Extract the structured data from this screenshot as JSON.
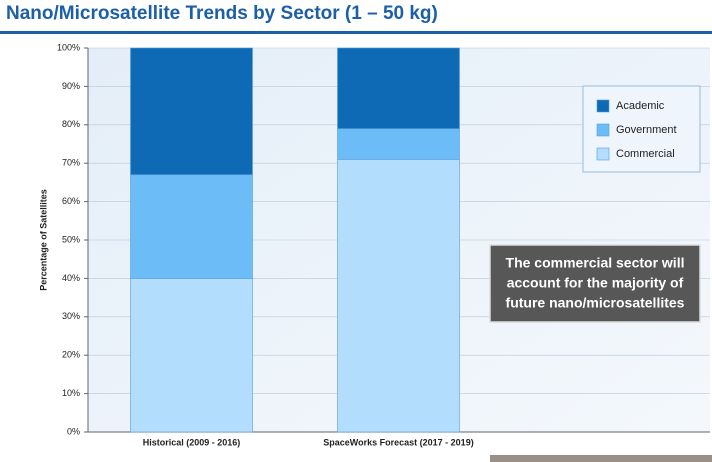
{
  "chart_data": {
    "type": "stacked-bar",
    "title": "Nano/Microsatellite Trends by Sector (1 – 50 kg)",
    "y_label": "Percentage of Satellites",
    "categories": [
      "Historical (2009 - 2016)",
      "SpaceWorks Forecast (2017 - 2019)"
    ],
    "series": [
      {
        "name": "Academic",
        "color": "#0e6ab5",
        "values": [
          33,
          21
        ]
      },
      {
        "name": "Government",
        "color": "#6cbcf8",
        "values": [
          27,
          8
        ]
      },
      {
        "name": "Commercial",
        "color": "#b2ddfc",
        "values": [
          40,
          71
        ]
      }
    ],
    "ylim": [
      0,
      100
    ],
    "yticks": [
      {
        "value": 0,
        "label": "0%"
      },
      {
        "value": 10,
        "label": "10%"
      },
      {
        "value": 20,
        "label": "20%"
      },
      {
        "value": 30,
        "label": "30%"
      },
      {
        "value": 40,
        "label": "40%"
      },
      {
        "value": 50,
        "label": "50%"
      },
      {
        "value": 60,
        "label": "60%"
      },
      {
        "value": 70,
        "label": "70%"
      },
      {
        "value": 80,
        "label": "80%"
      },
      {
        "value": 90,
        "label": "90%"
      },
      {
        "value": 100,
        "label": "100%"
      }
    ],
    "grid": true,
    "legend": "top-right",
    "annotation": [
      "The commercial sector will",
      "account for the majority of",
      "future nano/microsatellites"
    ]
  }
}
